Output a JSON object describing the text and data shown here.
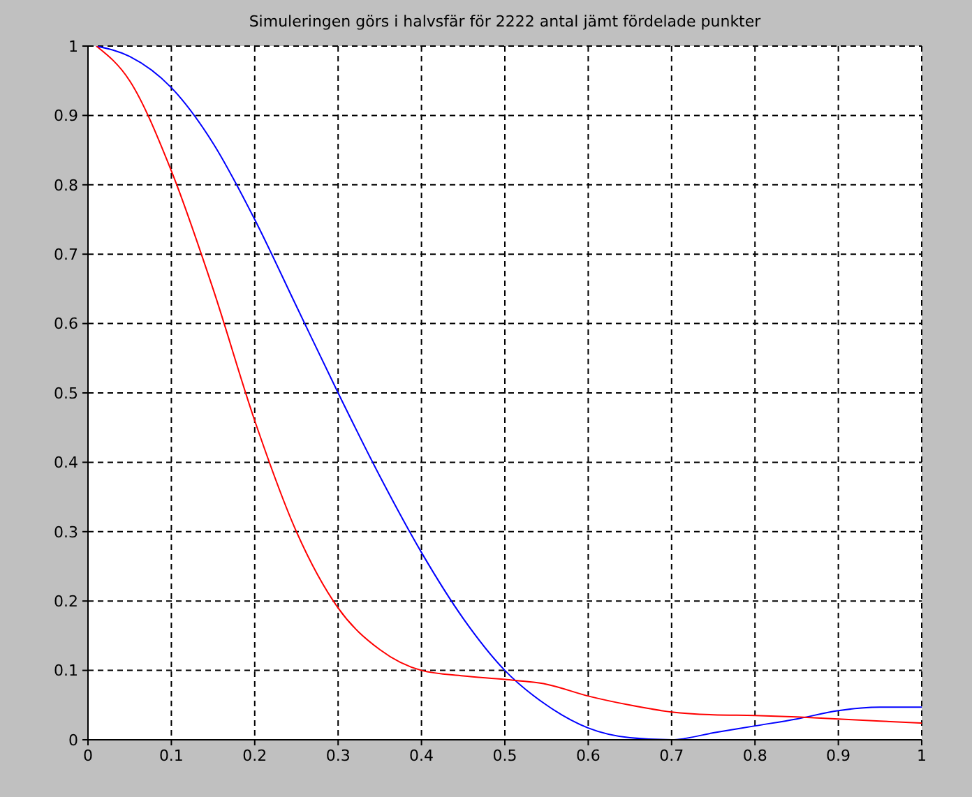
{
  "chart_data": {
    "type": "line",
    "title": "Simuleringen görs i halvsfär för 2222 antal jämt fördelade punkter",
    "x": [
      0.01,
      0.05,
      0.1,
      0.15,
      0.2,
      0.25,
      0.3,
      0.35,
      0.4,
      0.45,
      0.5,
      0.55,
      0.6,
      0.65,
      0.7,
      0.75,
      0.8,
      0.85,
      0.9,
      0.95,
      1
    ],
    "series": [
      {
        "color": "#0000ff",
        "values": [
          1,
          0.985,
          0.94,
          0.86,
          0.75,
          0.625,
          0.5,
          0.38,
          0.27,
          0.175,
          0.1,
          0.05,
          0.017,
          0.003,
          0,
          0.01,
          0.02,
          0.03,
          0.042,
          0.047,
          0.047
        ]
      },
      {
        "color": "#ff0000",
        "values": [
          1,
          0.95,
          0.82,
          0.65,
          0.46,
          0.3,
          0.19,
          0.13,
          0.1,
          0.092,
          0.087,
          0.08,
          0.063,
          0.05,
          0.04,
          0.036,
          0.035,
          0.033,
          0.03,
          0.027,
          0.024
        ]
      }
    ],
    "xlim": [
      0,
      1
    ],
    "xticks": [
      0,
      0.1,
      0.2,
      0.3,
      0.4,
      0.5,
      0.6,
      0.7,
      0.8,
      0.9,
      1
    ],
    "ylim": [
      0,
      1
    ],
    "yticks": [
      0,
      0.1,
      0.2,
      0.3,
      0.4,
      0.5,
      0.6,
      0.7,
      0.8,
      0.9,
      1
    ],
    "grid": true,
    "marker": "none",
    "line_style": "solid"
  }
}
